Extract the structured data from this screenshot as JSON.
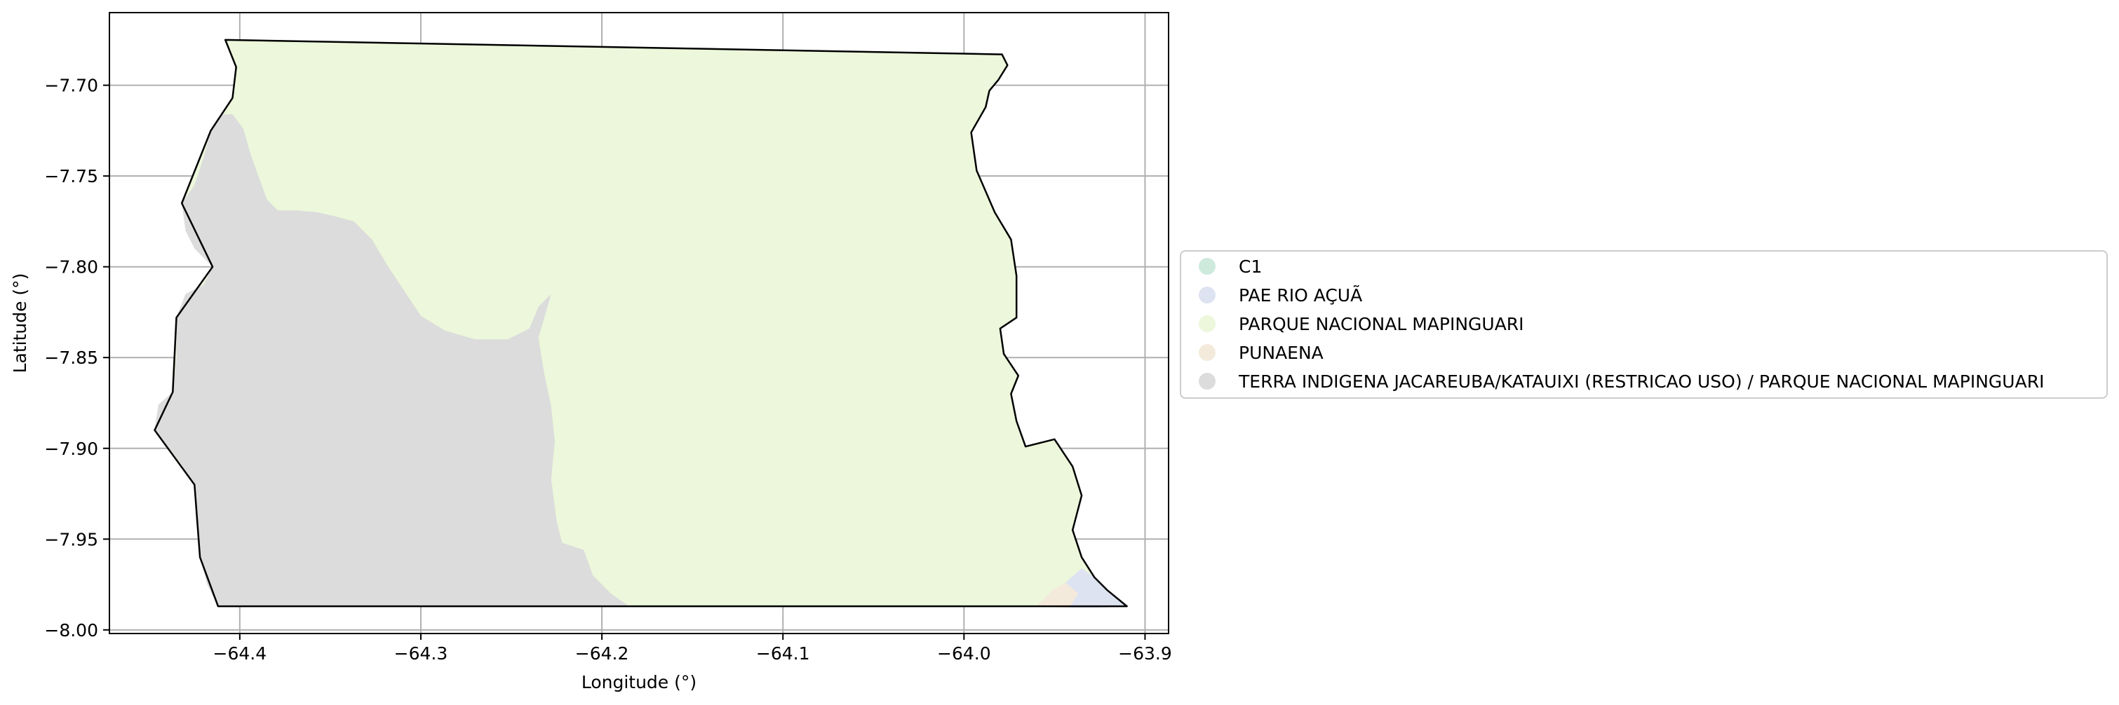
{
  "chart_data": {
    "type": "map",
    "xlabel": "Longitude (°)",
    "ylabel": "Latitude (°)",
    "xlim": [
      -64.472,
      -63.887
    ],
    "ylim": [
      -8.002,
      -7.66
    ],
    "x_ticks": [
      -64.4,
      -64.3,
      -64.2,
      -64.1,
      -64.0,
      -63.9
    ],
    "x_tick_labels": [
      "−64.4",
      "−64.3",
      "−64.2",
      "−64.1",
      "−64.0",
      "−63.9"
    ],
    "y_ticks": [
      -7.7,
      -7.75,
      -7.8,
      -7.85,
      -7.9,
      -7.95,
      -8.0
    ],
    "y_tick_labels": [
      "−7.70",
      "−7.75",
      "−7.80",
      "−7.85",
      "−7.90",
      "−7.95",
      "−8.00"
    ],
    "grid": true,
    "legend_position": "right",
    "legend": [
      {
        "label": "C1",
        "color": "#cdeadd"
      },
      {
        "label": "PAE RIO AÇUÃ",
        "color": "#dee3f1"
      },
      {
        "label": "PARQUE NACIONAL MAPINGUARI",
        "color": "#ecf7db"
      },
      {
        "label": "PUNAENA",
        "color": "#f4eadc"
      },
      {
        "label": "TERRA INDIGENA JACAREUBA/KATAUIXI (RESTRICAO USO) / PARQUE NACIONAL MAPINGUARI",
        "color": "#dcdcdc"
      }
    ],
    "regions": [
      {
        "name": "TERRA INDIGENA JACAREUBA/KATAUIXI (RESTRICAO USO) / PARQUE NACIONAL MAPINGUARI",
        "coords": [
          [
            -64.404,
            -7.716
          ],
          [
            -64.398,
            -7.724
          ],
          [
            -64.394,
            -7.738
          ],
          [
            -64.389,
            -7.752
          ],
          [
            -64.385,
            -7.763
          ],
          [
            -64.379,
            -7.769
          ],
          [
            -64.368,
            -7.769
          ],
          [
            -64.357,
            -7.77
          ],
          [
            -64.348,
            -7.772
          ],
          [
            -64.337,
            -7.775
          ],
          [
            -64.327,
            -7.785
          ],
          [
            -64.318,
            -7.8
          ],
          [
            -64.308,
            -7.815
          ],
          [
            -64.3,
            -7.827
          ],
          [
            -64.287,
            -7.835
          ],
          [
            -64.27,
            -7.84
          ],
          [
            -64.252,
            -7.84
          ],
          [
            -64.24,
            -7.834
          ],
          [
            -64.235,
            -7.822
          ],
          [
            -64.228,
            -7.815
          ],
          [
            -64.235,
            -7.839
          ],
          [
            -64.232,
            -7.858
          ],
          [
            -64.228,
            -7.877
          ],
          [
            -64.226,
            -7.896
          ],
          [
            -64.228,
            -7.917
          ],
          [
            -64.225,
            -7.94
          ],
          [
            -64.222,
            -7.952
          ],
          [
            -64.21,
            -7.956
          ],
          [
            -64.205,
            -7.97
          ],
          [
            -64.195,
            -7.98
          ],
          [
            -64.185,
            -7.987
          ],
          [
            -64.412,
            -7.987
          ],
          [
            -64.418,
            -7.975
          ],
          [
            -64.422,
            -7.96
          ],
          [
            -64.424,
            -7.94
          ],
          [
            -64.425,
            -7.92
          ],
          [
            -64.435,
            -7.905
          ],
          [
            -64.447,
            -7.89
          ],
          [
            -64.445,
            -7.876
          ],
          [
            -64.437,
            -7.869
          ],
          [
            -64.435,
            -7.85
          ],
          [
            -64.435,
            -7.828
          ],
          [
            -64.43,
            -7.815
          ],
          [
            -64.42,
            -7.81
          ],
          [
            -64.415,
            -7.8
          ],
          [
            -64.425,
            -7.79
          ],
          [
            -64.43,
            -7.78
          ],
          [
            -64.432,
            -7.765
          ],
          [
            -64.425,
            -7.755
          ],
          [
            -64.42,
            -7.74
          ],
          [
            -64.416,
            -7.725
          ],
          [
            -64.41,
            -7.716
          ]
        ]
      },
      {
        "name": "PAE RIO AÇUÃ",
        "coords": [
          [
            -63.935,
            -7.966
          ],
          [
            -63.928,
            -7.971
          ],
          [
            -63.921,
            -7.978
          ],
          [
            -63.916,
            -7.982
          ],
          [
            -63.91,
            -7.987
          ],
          [
            -63.926,
            -7.988
          ],
          [
            -63.942,
            -7.988
          ],
          [
            -63.937,
            -7.98
          ],
          [
            -63.944,
            -7.974
          ]
        ]
      },
      {
        "name": "PUNAENA",
        "coords": [
          [
            -63.944,
            -7.974
          ],
          [
            -63.951,
            -7.978
          ],
          [
            -63.96,
            -7.987
          ],
          [
            -63.942,
            -7.988
          ],
          [
            -63.937,
            -7.98
          ]
        ]
      }
    ],
    "outline": [
      [
        -64.408,
        -7.675
      ],
      [
        -63.979,
        -7.683
      ],
      [
        -63.976,
        -7.689
      ],
      [
        -63.981,
        -7.697
      ],
      [
        -63.986,
        -7.703
      ],
      [
        -63.988,
        -7.712
      ],
      [
        -63.996,
        -7.726
      ],
      [
        -63.993,
        -7.747
      ],
      [
        -63.983,
        -7.77
      ],
      [
        -63.974,
        -7.785
      ],
      [
        -63.971,
        -7.805
      ],
      [
        -63.971,
        -7.828
      ],
      [
        -63.98,
        -7.834
      ],
      [
        -63.978,
        -7.848
      ],
      [
        -63.97,
        -7.86
      ],
      [
        -63.974,
        -7.87
      ],
      [
        -63.971,
        -7.885
      ],
      [
        -63.966,
        -7.899
      ],
      [
        -63.95,
        -7.895
      ],
      [
        -63.94,
        -7.91
      ],
      [
        -63.935,
        -7.926
      ],
      [
        -63.94,
        -7.945
      ],
      [
        -63.935,
        -7.96
      ],
      [
        -63.928,
        -7.971
      ],
      [
        -63.921,
        -7.978
      ],
      [
        -63.91,
        -7.987
      ],
      [
        -64.412,
        -7.987
      ],
      [
        -64.422,
        -7.96
      ],
      [
        -64.425,
        -7.92
      ],
      [
        -64.447,
        -7.89
      ],
      [
        -64.437,
        -7.869
      ],
      [
        -64.435,
        -7.828
      ],
      [
        -64.415,
        -7.8
      ],
      [
        -64.432,
        -7.765
      ],
      [
        -64.416,
        -7.725
      ],
      [
        -64.404,
        -7.707
      ],
      [
        -64.402,
        -7.69
      ]
    ]
  }
}
